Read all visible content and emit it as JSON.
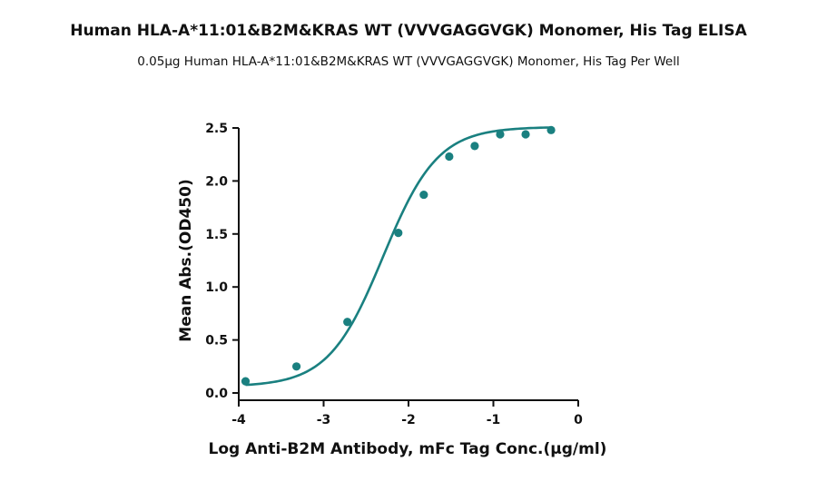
{
  "chart_data": {
    "type": "scatter",
    "title": "Human HLA-A*11:01&B2M&KRAS WT (VVVGAGGVGK) Monomer, His Tag ELISA",
    "subtitle": "0.05μg Human HLA-A*11:01&B2M&KRAS WT (VVVGAGGVGK) Monomer, His Tag Per Well",
    "xlabel": "Log Anti-B2M Antibody, mFc Tag Conc.(μg/ml)",
    "ylabel": "Mean Abs.(OD450)",
    "xlim": [
      -4,
      0
    ],
    "ylim": [
      0,
      2.5
    ],
    "xticks": [
      -4,
      -3,
      -2,
      -1,
      0
    ],
    "yticks": [
      0.0,
      0.5,
      1.0,
      1.5,
      2.0,
      2.5
    ],
    "xtick_labels": [
      "-4",
      "-3",
      "-2",
      "-1",
      "0"
    ],
    "ytick_labels": [
      "0.0",
      "0.5",
      "1.0",
      "1.5",
      "2.0",
      "2.5"
    ],
    "grid": false,
    "color": "#1a8080",
    "series": [
      {
        "x": [
          -3.92,
          -3.32,
          -2.72,
          -2.12,
          -1.82,
          -1.52,
          -1.22,
          -0.92,
          -0.62,
          -0.32
        ],
        "y": [
          0.11,
          0.25,
          0.67,
          1.51,
          1.87,
          2.23,
          2.33,
          2.44,
          2.44,
          2.48
        ]
      }
    ],
    "fit_curve": {
      "type": "4PL",
      "bottom": 0.06,
      "top": 2.51,
      "log_ec50": -2.3,
      "hill": 1.35
    }
  }
}
